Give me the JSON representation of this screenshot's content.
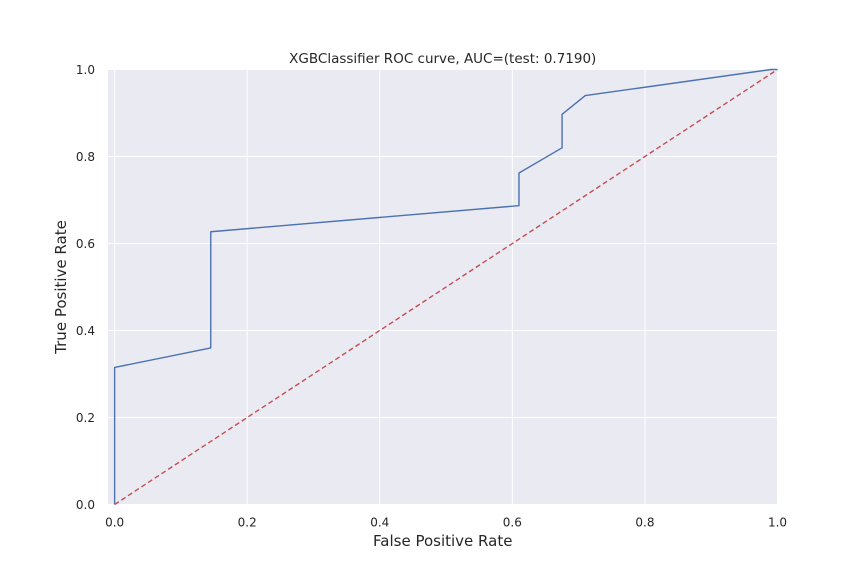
{
  "chart_data": {
    "type": "line",
    "title": "XGBClassifier ROC curve, AUC=(test: 0.7190)",
    "xlabel": "False Positive Rate",
    "ylabel": "True Positive Rate",
    "xlim": [
      -0.01,
      1.0
    ],
    "ylim": [
      0.0,
      1.0
    ],
    "xticks": [
      "0.0",
      "0.2",
      "0.4",
      "0.6",
      "0.8",
      "1.0"
    ],
    "yticks": [
      "0.0",
      "0.2",
      "0.4",
      "0.6",
      "0.8",
      "1.0"
    ],
    "grid": true,
    "background_color": "#eaeaf2",
    "grid_color": "#ffffff",
    "series": [
      {
        "color": "#4c72b0",
        "style": "solid",
        "x": [
          0.0,
          0.0,
          0.145,
          0.145,
          0.61,
          0.61,
          0.675,
          0.675,
          0.71,
          0.99,
          1.0
        ],
        "y": [
          0.0,
          0.315,
          0.36,
          0.627,
          0.687,
          0.762,
          0.82,
          0.897,
          0.94,
          1.0,
          1.0
        ]
      },
      {
        "color": "#c44e52",
        "style": "dashed",
        "x": [
          0.0,
          1.0
        ],
        "y": [
          0.0,
          1.0
        ]
      }
    ]
  }
}
